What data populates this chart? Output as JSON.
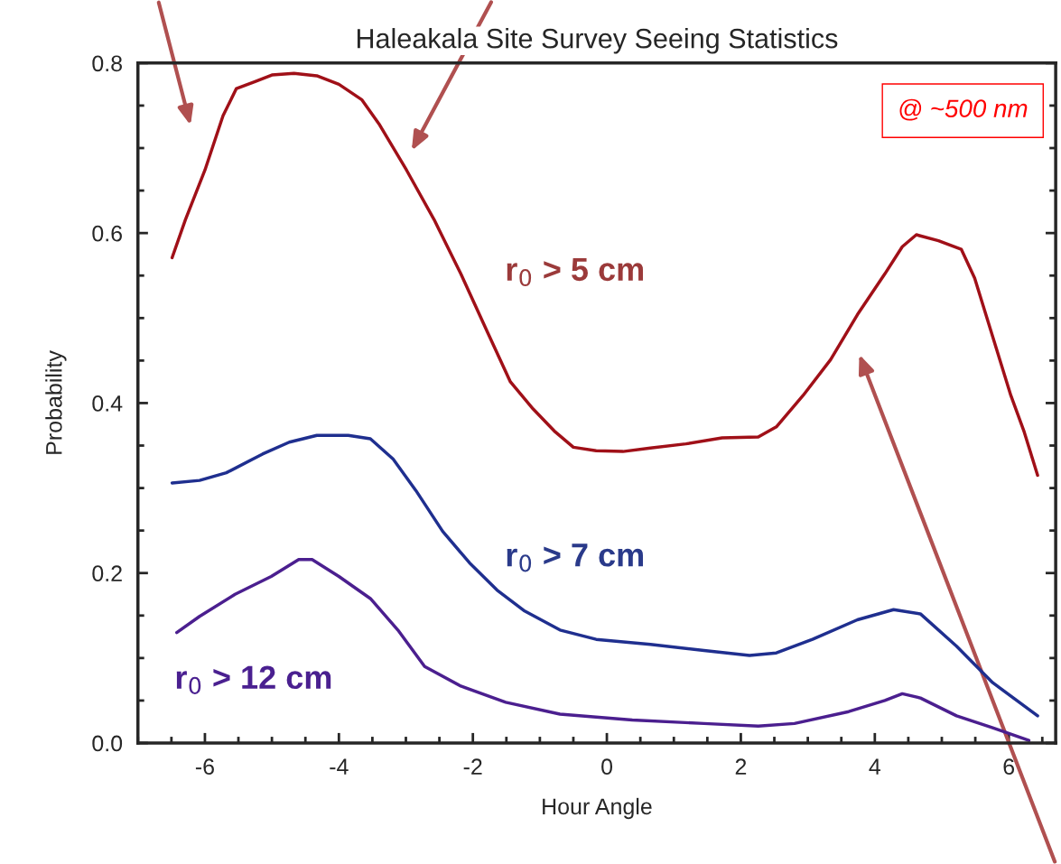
{
  "chart_data": {
    "type": "line",
    "title": "Haleakala Site Survey Seeing Statistics",
    "xlabel": "Hour Angle",
    "ylabel": "Probability",
    "xlim": [
      -7,
      6.7
    ],
    "xticks": [
      -6,
      -4,
      -2,
      0,
      2,
      4,
      6
    ],
    "ylim": [
      0,
      0.8
    ],
    "yticks": [
      {
        "value": 0,
        "label": "0.0"
      },
      0.2,
      0.4,
      0.6,
      0.8
    ],
    "grid": false,
    "legend": false,
    "marker": "none",
    "line_style": "solid",
    "annotations": [
      "@ ~500 nm"
    ],
    "series": [
      {
        "name": "r$_{0}$ > 5 cm",
        "color": "#a01018",
        "x": [
          -6.49,
          -6.29,
          -6.0,
          -5.73,
          -5.53,
          -5.26,
          -5.0,
          -4.67,
          -4.33,
          -4.0,
          -3.66,
          -3.39,
          -2.99,
          -2.58,
          -2.18,
          -1.78,
          -1.44,
          -1.1,
          -0.77,
          -0.5,
          -0.16,
          0.24,
          0.65,
          1.18,
          1.72,
          2.26,
          2.53,
          2.93,
          3.34,
          3.74,
          4.15,
          4.41,
          4.62,
          4.95,
          5.29,
          5.49,
          5.76,
          6.03,
          6.23,
          6.43
        ],
        "values": [
          0.571,
          0.616,
          0.674,
          0.738,
          0.77,
          0.778,
          0.786,
          0.788,
          0.785,
          0.775,
          0.757,
          0.727,
          0.674,
          0.616,
          0.552,
          0.483,
          0.425,
          0.393,
          0.366,
          0.348,
          0.344,
          0.343,
          0.347,
          0.352,
          0.359,
          0.36,
          0.372,
          0.409,
          0.451,
          0.504,
          0.552,
          0.584,
          0.598,
          0.591,
          0.581,
          0.547,
          0.478,
          0.409,
          0.366,
          0.315
        ]
      },
      {
        "name": "r$_{0}$ > 7 cm",
        "color": "#1f2f8f",
        "x": [
          -6.49,
          -6.08,
          -5.68,
          -5.14,
          -4.74,
          -4.33,
          -3.86,
          -3.53,
          -3.19,
          -2.85,
          -2.45,
          -2.05,
          -1.64,
          -1.24,
          -0.7,
          -0.16,
          0.65,
          1.45,
          2.13,
          2.53,
          3.07,
          3.74,
          4.28,
          4.68,
          5.22,
          5.76,
          6.43
        ],
        "values": [
          0.306,
          0.309,
          0.318,
          0.34,
          0.354,
          0.362,
          0.362,
          0.358,
          0.334,
          0.297,
          0.249,
          0.212,
          0.18,
          0.156,
          0.133,
          0.122,
          0.116,
          0.109,
          0.103,
          0.106,
          0.122,
          0.145,
          0.157,
          0.152,
          0.114,
          0.071,
          0.032
        ]
      },
      {
        "name": "r$_{0}$ > 12 cm",
        "color": "#4b1f8f",
        "x": [
          -6.42,
          -6.08,
          -5.55,
          -5.01,
          -4.6,
          -4.4,
          -4.0,
          -3.53,
          -3.12,
          -2.72,
          -2.18,
          -1.51,
          -0.7,
          0.38,
          1.45,
          2.26,
          2.8,
          3.61,
          4.15,
          4.41,
          4.68,
          5.22,
          5.76,
          6.3
        ],
        "values": [
          0.13,
          0.149,
          0.175,
          0.196,
          0.216,
          0.216,
          0.196,
          0.17,
          0.133,
          0.09,
          0.067,
          0.048,
          0.034,
          0.027,
          0.023,
          0.02,
          0.023,
          0.037,
          0.05,
          0.058,
          0.053,
          0.032,
          0.018,
          0.003
        ]
      }
    ]
  }
}
